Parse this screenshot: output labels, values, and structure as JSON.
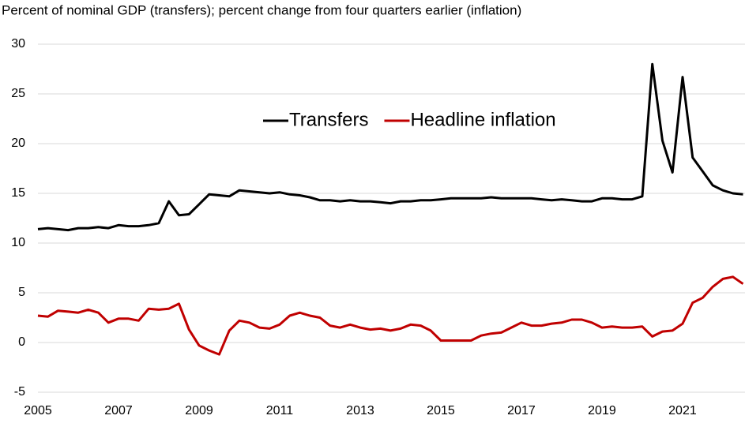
{
  "chart_data": {
    "type": "line",
    "subtitle": "Percent of nominal GDP (transfers); percent change from four quarters earlier (inflation)",
    "x": [
      2005,
      2005.25,
      2005.5,
      2005.75,
      2006,
      2006.25,
      2006.5,
      2006.75,
      2007,
      2007.25,
      2007.5,
      2007.75,
      2008,
      2008.25,
      2008.5,
      2008.75,
      2009,
      2009.25,
      2009.5,
      2009.75,
      2010,
      2010.25,
      2010.5,
      2010.75,
      2011,
      2011.25,
      2011.5,
      2011.75,
      2012,
      2012.25,
      2012.5,
      2012.75,
      2013,
      2013.25,
      2013.5,
      2013.75,
      2014,
      2014.25,
      2014.5,
      2014.75,
      2015,
      2015.25,
      2015.5,
      2015.75,
      2016,
      2016.25,
      2016.5,
      2016.75,
      2017,
      2017.25,
      2017.5,
      2017.75,
      2018,
      2018.25,
      2018.5,
      2018.75,
      2019,
      2019.25,
      2019.5,
      2019.75,
      2020,
      2020.25,
      2020.5,
      2020.75,
      2021,
      2021.25,
      2021.5,
      2021.75,
      2022,
      2022.25,
      2022.5
    ],
    "series": [
      {
        "name": "Transfers",
        "color": "#000000",
        "values": [
          11.4,
          11.5,
          11.4,
          11.3,
          11.5,
          11.5,
          11.6,
          11.5,
          11.8,
          11.7,
          11.7,
          11.8,
          12.0,
          14.2,
          12.8,
          12.9,
          13.9,
          14.9,
          14.8,
          14.7,
          15.3,
          15.2,
          15.1,
          15.0,
          15.1,
          14.9,
          14.8,
          14.6,
          14.3,
          14.3,
          14.2,
          14.3,
          14.2,
          14.2,
          14.1,
          14.0,
          14.2,
          14.2,
          14.3,
          14.3,
          14.4,
          14.5,
          14.5,
          14.5,
          14.5,
          14.6,
          14.5,
          14.5,
          14.5,
          14.5,
          14.4,
          14.3,
          14.4,
          14.3,
          14.2,
          14.2,
          14.5,
          14.5,
          14.4,
          14.4,
          14.7,
          28.0,
          20.3,
          17.1,
          26.7,
          18.6,
          17.2,
          15.8,
          15.3,
          15.0,
          14.9
        ]
      },
      {
        "name": "Headline inflation",
        "color": "#c00000",
        "values": [
          2.7,
          2.6,
          3.2,
          3.1,
          3.0,
          3.3,
          3.0,
          2.0,
          2.4,
          2.4,
          2.2,
          3.4,
          3.3,
          3.4,
          3.9,
          1.3,
          -0.3,
          -0.8,
          -1.2,
          1.2,
          2.2,
          2.0,
          1.5,
          1.4,
          1.8,
          2.7,
          3.0,
          2.7,
          2.5,
          1.7,
          1.5,
          1.8,
          1.5,
          1.3,
          1.4,
          1.2,
          1.4,
          1.8,
          1.7,
          1.2,
          0.2,
          0.2,
          0.2,
          0.2,
          0.7,
          0.9,
          1.0,
          1.5,
          2.0,
          1.7,
          1.7,
          1.9,
          2.0,
          2.3,
          2.3,
          2.0,
          1.5,
          1.6,
          1.5,
          1.5,
          1.6,
          0.6,
          1.1,
          1.2,
          1.9,
          4.0,
          4.5,
          5.6,
          6.4,
          6.6,
          5.9
        ]
      }
    ],
    "xlim": [
      2005,
      2022.55
    ],
    "xticks": [
      2005,
      2007,
      2009,
      2011,
      2013,
      2015,
      2017,
      2019,
      2021
    ],
    "ylim": [
      -5,
      30
    ],
    "yticks": [
      -5,
      0,
      5,
      10,
      15,
      20,
      25,
      30
    ],
    "grid": true,
    "legend": "upper center"
  }
}
